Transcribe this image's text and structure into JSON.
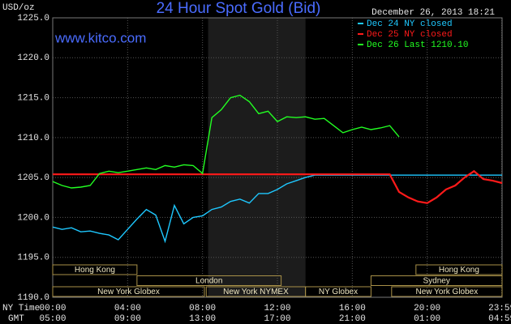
{
  "chart_data": {
    "type": "line",
    "title": "24 Hour Spot Gold (Bid)",
    "subtitle": "www.kitco.com",
    "timestamp": "December 26, 2013 18:21",
    "ylabel": "USD/oz",
    "xlabel": "NY Time",
    "x2label": "GMT",
    "x": [
      0,
      0.5,
      1,
      1.5,
      2,
      2.5,
      3,
      3.5,
      4,
      4.5,
      5,
      5.5,
      6,
      6.5,
      7,
      7.5,
      8,
      8.5,
      9,
      9.5,
      10,
      10.5,
      11,
      11.5,
      12,
      12.5,
      13,
      13.5,
      14,
      14.5,
      15,
      15.5,
      16,
      16.5,
      17,
      17.5,
      18,
      18.5,
      19,
      19.5,
      20,
      20.5,
      21,
      21.5,
      22,
      22.5,
      23,
      23.5,
      24
    ],
    "series": [
      {
        "name": "Dec 24 NY closed",
        "color": "#1ec8ff",
        "values": [
          1198.8,
          1198.5,
          1198.7,
          1198.2,
          1198.3,
          1198,
          1197.8,
          1197.2,
          1198.5,
          1199.8,
          1201,
          1200.3,
          1197,
          1201.5,
          1199.2,
          1200,
          1200.2,
          1201,
          1201.3,
          1202,
          1202.3,
          1201.8,
          1203,
          1203,
          1203.5,
          1204.2,
          1204.6,
          1205,
          1205.3,
          1205.3,
          1205.3,
          1205.3,
          1205.3,
          1205.3,
          1205.3,
          1205.3,
          1205.3,
          1205.3,
          1205.3,
          1205.3,
          1205.3,
          1205.3,
          1205.3,
          1205.3,
          1205.3,
          1205.3,
          1205.3,
          1205.3,
          1205.3
        ]
      },
      {
        "name": "Dec 25 NY closed",
        "color": "#ff1a1a",
        "values": [
          1205.4,
          1205.4,
          1205.4,
          1205.4,
          1205.4,
          1205.4,
          1205.4,
          1205.4,
          1205.4,
          1205.4,
          1205.4,
          1205.4,
          1205.4,
          1205.4,
          1205.4,
          1205.4,
          1205.4,
          1205.4,
          1205.4,
          1205.4,
          1205.4,
          1205.4,
          1205.4,
          1205.4,
          1205.4,
          1205.4,
          1205.4,
          1205.4,
          1205.4,
          1205.4,
          1205.4,
          1205.4,
          1205.4,
          1205.4,
          1205.4,
          1205.4,
          1205.4,
          1203.2,
          1202.5,
          1202,
          1201.8,
          1202.5,
          1203.5,
          1204,
          1205,
          1205.8,
          1204.8,
          1204.6,
          1204.3
        ]
      },
      {
        "name": "Dec 26 Last 1210.10",
        "color": "#22ff22",
        "values": [
          1204.5,
          1204,
          1203.7,
          1203.8,
          1204,
          1205.5,
          1205.8,
          1205.6,
          1205.8,
          1206,
          1206.2,
          1206,
          1206.5,
          1206.3,
          1206.6,
          1206.5,
          1205.5,
          1212.5,
          1213.5,
          1215,
          1215.3,
          1214.5,
          1213,
          1213.3,
          1212,
          1212.6,
          1212.5,
          1212.6,
          1212.3,
          1212.4,
          1211.5,
          1210.6,
          1211,
          1211.3,
          1211,
          1211.2,
          1211.5,
          1210.1,
          null,
          null,
          null,
          null,
          null,
          null,
          null,
          null,
          null,
          null,
          null
        ]
      }
    ],
    "xlim": [
      0,
      24
    ],
    "ylim": [
      1190,
      1225
    ],
    "xticks": [
      {
        "value": 0,
        "label": "00:00"
      },
      {
        "value": 4,
        "label": "04:00"
      },
      {
        "value": 8,
        "label": "08:00"
      },
      {
        "value": 12,
        "label": "12:00"
      },
      {
        "value": 16,
        "label": "16:00"
      },
      {
        "value": 20,
        "label": "20:00"
      },
      {
        "value": 23.983,
        "label": "23:59"
      }
    ],
    "x2ticks": [
      {
        "value": 0,
        "label": "05:00"
      },
      {
        "value": 4,
        "label": "09:00"
      },
      {
        "value": 8,
        "label": "13:00"
      },
      {
        "value": 12,
        "label": "17:00"
      },
      {
        "value": 16,
        "label": "21:00"
      },
      {
        "value": 20,
        "label": "01:00"
      },
      {
        "value": 23.983,
        "label": "04:59"
      }
    ],
    "yticks": [
      {
        "value": 1190,
        "label": "1190.0"
      },
      {
        "value": 1195,
        "label": "1195.0"
      },
      {
        "value": 1200,
        "label": "1200.0"
      },
      {
        "value": 1205,
        "label": "1205.0"
      },
      {
        "value": 1210,
        "label": "1210.0"
      },
      {
        "value": 1215,
        "label": "1215.0"
      },
      {
        "value": 1220,
        "label": "1220.0"
      },
      {
        "value": 1225,
        "label": "1225.0"
      }
    ],
    "grid": true,
    "sessions": [
      "Hong Kong",
      "London",
      "New York Globex",
      "New York NYMEX",
      "NY Globex",
      "Sydney",
      "Hong Kong",
      "New York Globex"
    ]
  }
}
